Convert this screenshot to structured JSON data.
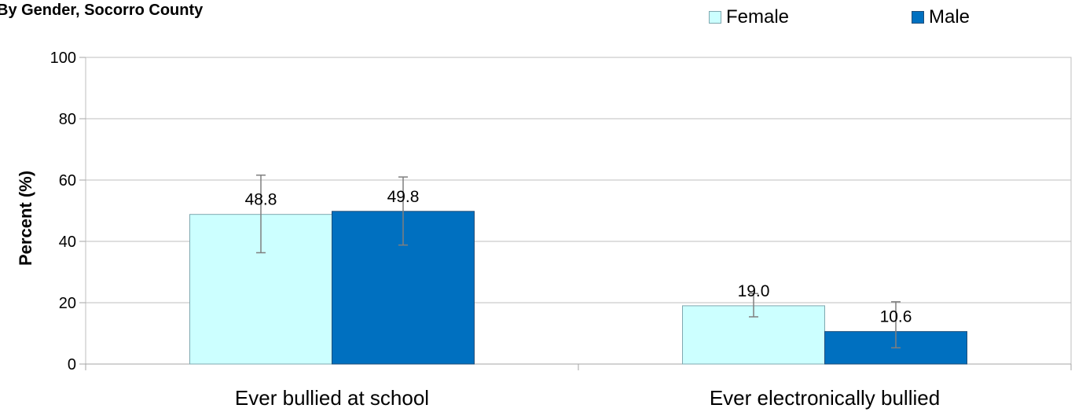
{
  "title": "By Gender, Socorro County",
  "legend": {
    "items": [
      {
        "label": "Female",
        "color": "#CCFFFF",
        "border": "#7FA8B0"
      },
      {
        "label": "Male",
        "color": "#0070C0",
        "border": "#1F4E79"
      }
    ]
  },
  "chart_data": {
    "type": "bar",
    "categories": [
      "Ever bullied at school",
      "Ever electronically bullied"
    ],
    "series": [
      {
        "name": "Female",
        "values": [
          48.8,
          19.0
        ],
        "ci_low": [
          36.3,
          15.4
        ],
        "ci_high": [
          61.6,
          23.0
        ],
        "labels": [
          "48.8",
          "19.0"
        ]
      },
      {
        "name": "Male",
        "values": [
          49.8,
          10.6
        ],
        "ci_low": [
          38.8,
          5.3
        ],
        "ci_high": [
          61.0,
          20.3
        ],
        "labels": [
          "49.8",
          "10.6"
        ]
      }
    ],
    "ylabel": "Percent (%)",
    "xlabel": "",
    "ylim": [
      0,
      100
    ],
    "yticks": [
      "0",
      "20",
      "40",
      "60",
      "80",
      "100"
    ],
    "grid": true,
    "error_bars": true,
    "legend_position": "top-right"
  }
}
